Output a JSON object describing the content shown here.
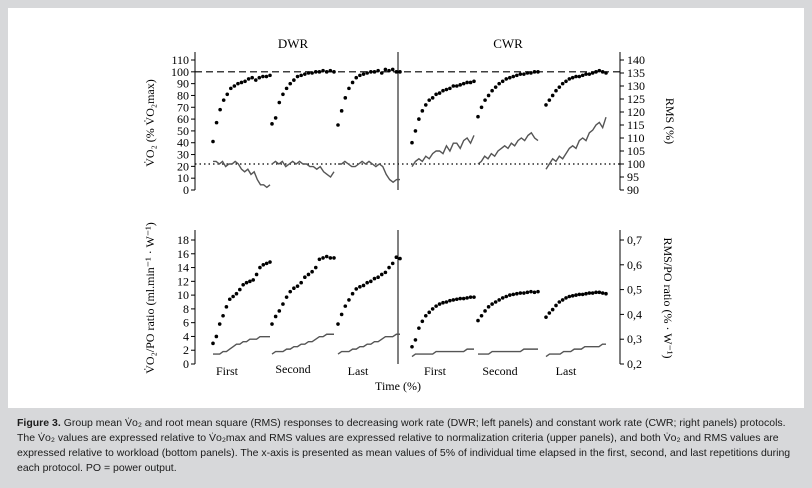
{
  "colors": {
    "background": "#d7d8da",
    "panel": "#ffffff",
    "dots": "#000000",
    "rms_line": "#555555",
    "axis": "#000000"
  },
  "panel_titles": [
    "DWR",
    "CWR"
  ],
  "x_axis": {
    "title": "Time (%)",
    "groups": [
      "First",
      "Second",
      "Last",
      "First",
      "Second",
      "Last"
    ]
  },
  "caption": {
    "label": "Figure 3.",
    "text": "Group mean V̇o₂ and root mean square (RMS) responses to decreasing work rate (DWR; left panels) and constant work rate (CWR; right panels) protocols. The V̇o₂ values are expressed relative to V̇o₂max and RMS values are expressed relative to normalization criteria (upper panels), and both V̇o₂ and RMS values are expressed relative to workload (bottom panels). The x-axis is presented as mean values of 5% of individual time elapsed in the first, second, and last repetitions during each protocol. PO = power output."
  },
  "chart_data": [
    {
      "type": "scatter",
      "position": "upper",
      "left_axis": {
        "label": "V̇O₂ (% V̇O₂max)",
        "ylim": [
          0,
          110
        ],
        "ticks": [
          "0",
          "10",
          "20",
          "30",
          "40",
          "50",
          "60",
          "70",
          "80",
          "90",
          "100",
          "110"
        ]
      },
      "right_axis": {
        "label": "RMS (%)",
        "ylim": [
          90,
          140
        ],
        "ticks": [
          "90",
          "95",
          "100",
          "105",
          "110",
          "115",
          "120",
          "125",
          "130",
          "135",
          "140"
        ]
      },
      "reference_lines": [
        {
          "style": "dashed",
          "left_axis_value": 100
        },
        {
          "style": "dotted",
          "left_axis_value": 22
        }
      ],
      "series": [
        {
          "protocol": "DWR",
          "repetition": "First",
          "vo2": [
            41,
            57,
            68,
            76,
            81,
            86,
            88,
            90,
            91,
            92,
            94,
            95,
            93,
            95,
            96,
            96,
            97
          ],
          "rms": [
            101,
            101,
            100,
            101,
            99,
            100,
            100,
            101,
            100,
            98,
            97,
            98,
            96,
            97,
            94,
            92,
            92,
            91,
            92
          ]
        },
        {
          "protocol": "DWR",
          "repetition": "Second",
          "vo2": [
            56,
            61,
            74,
            81,
            86,
            90,
            93,
            96,
            97,
            98,
            99,
            99,
            100,
            100,
            101,
            100,
            101,
            100
          ],
          "rms": [
            100,
            101,
            100,
            101,
            99,
            100,
            101,
            100,
            101,
            100,
            100,
            99,
            99,
            98,
            99,
            97,
            96,
            95,
            97
          ]
        },
        {
          "protocol": "DWR",
          "repetition": "Last",
          "vo2": [
            55,
            67,
            78,
            86,
            91,
            95,
            97,
            98,
            99,
            100,
            100,
            101,
            99,
            102,
            101,
            102,
            100,
            100
          ],
          "rms": [
            100,
            100,
            101,
            100,
            99,
            99,
            100,
            101,
            100,
            101,
            100,
            99,
            100,
            99,
            96,
            94,
            93,
            94,
            94
          ]
        },
        {
          "protocol": "CWR",
          "repetition": "First",
          "vo2": [
            40,
            50,
            60,
            67,
            72,
            76,
            78,
            81,
            82,
            84,
            85,
            86,
            88,
            88,
            89,
            90,
            91,
            91,
            92
          ],
          "rms": [
            99,
            101,
            102,
            101,
            103,
            102,
            104,
            105,
            105,
            104,
            107,
            105,
            108,
            108,
            106,
            109,
            110,
            108,
            111
          ]
        },
        {
          "protocol": "CWR",
          "repetition": "Second",
          "vo2": [
            62,
            70,
            76,
            80,
            84,
            87,
            90,
            92,
            94,
            95,
            96,
            97,
            98,
            98,
            99,
            99,
            100,
            100
          ],
          "rms": [
            100,
            101,
            103,
            102,
            104,
            103,
            105,
            106,
            107,
            106,
            108,
            107,
            109,
            110,
            109,
            111,
            112,
            110,
            109
          ]
        },
        {
          "protocol": "CWR",
          "repetition": "Last",
          "vo2": [
            72,
            76,
            80,
            84,
            87,
            90,
            92,
            94,
            95,
            96,
            96,
            97,
            98,
            98,
            99,
            100,
            101,
            100,
            99
          ],
          "rms": [
            98,
            100,
            102,
            101,
            103,
            102,
            104,
            106,
            107,
            106,
            109,
            110,
            109,
            112,
            113,
            115,
            116,
            114,
            118
          ]
        }
      ]
    },
    {
      "type": "scatter",
      "position": "lower",
      "left_axis": {
        "label": "V̇O₂/PO ratio (ml.min⁻¹ · W⁻¹)",
        "ylim": [
          0,
          18
        ],
        "ticks": [
          "0",
          "2",
          "4",
          "6",
          "8",
          "10",
          "12",
          "14",
          "16",
          "18"
        ]
      },
      "right_axis": {
        "label": "RMS/PO ratio (% · W⁻¹)",
        "ylim": [
          0.2,
          0.7
        ],
        "ticks": [
          "0,2",
          "0,3",
          "0,4",
          "0,5",
          "0,6",
          "0,7"
        ]
      },
      "series": [
        {
          "protocol": "DWR",
          "repetition": "First",
          "vo2_po": [
            3.0,
            4.0,
            5.8,
            7.0,
            8.3,
            9.4,
            9.8,
            10.2,
            10.8,
            11.5,
            11.8,
            12.0,
            12.2,
            13.0,
            14.0,
            14.4,
            14.6,
            14.8
          ],
          "rms_po": [
            0.24,
            0.24,
            0.24,
            0.25,
            0.25,
            0.26,
            0.27,
            0.28,
            0.28,
            0.29,
            0.29,
            0.3,
            0.3,
            0.3,
            0.31,
            0.31,
            0.31,
            0.31
          ]
        },
        {
          "protocol": "DWR",
          "repetition": "Second",
          "vo2_po": [
            5.8,
            6.9,
            7.7,
            8.7,
            9.7,
            10.5,
            11.0,
            11.3,
            11.8,
            12.6,
            13.0,
            13.4,
            14.0,
            15.2,
            15.4,
            15.6,
            15.4,
            15.4
          ],
          "rms_po": [
            0.24,
            0.25,
            0.25,
            0.25,
            0.26,
            0.26,
            0.27,
            0.27,
            0.28,
            0.28,
            0.29,
            0.29,
            0.3,
            0.31,
            0.31,
            0.32,
            0.32,
            0.32
          ]
        },
        {
          "protocol": "DWR",
          "repetition": "Last",
          "vo2_po": [
            5.8,
            7.2,
            8.4,
            9.3,
            10.2,
            10.9,
            11.2,
            11.4,
            11.8,
            12.0,
            12.4,
            12.6,
            13.0,
            13.3,
            14.0,
            14.6,
            15.5,
            15.3
          ],
          "rms_po": [
            0.24,
            0.25,
            0.25,
            0.25,
            0.26,
            0.26,
            0.27,
            0.27,
            0.28,
            0.28,
            0.29,
            0.29,
            0.3,
            0.31,
            0.31,
            0.31,
            0.32,
            0.32
          ]
        },
        {
          "protocol": "CWR",
          "repetition": "First",
          "vo2_po": [
            2.5,
            3.5,
            5.2,
            6.2,
            7.0,
            7.5,
            8.0,
            8.4,
            8.7,
            8.9,
            9.0,
            9.2,
            9.3,
            9.4,
            9.5,
            9.5,
            9.6,
            9.7,
            9.7
          ],
          "rms_po": [
            0.23,
            0.24,
            0.24,
            0.24,
            0.24,
            0.24,
            0.24,
            0.25,
            0.25,
            0.25,
            0.25,
            0.25,
            0.25,
            0.25,
            0.25,
            0.25,
            0.26,
            0.26,
            0.26
          ]
        },
        {
          "protocol": "CWR",
          "repetition": "Second",
          "vo2_po": [
            6.3,
            7.0,
            7.7,
            8.3,
            8.7,
            9.0,
            9.3,
            9.6,
            9.8,
            10.0,
            10.1,
            10.2,
            10.3,
            10.3,
            10.4,
            10.5,
            10.4,
            10.5
          ],
          "rms_po": [
            0.24,
            0.24,
            0.24,
            0.24,
            0.25,
            0.25,
            0.25,
            0.25,
            0.25,
            0.25,
            0.25,
            0.25,
            0.25,
            0.26,
            0.26,
            0.26,
            0.26,
            0.26
          ]
        },
        {
          "protocol": "CWR",
          "repetition": "Last",
          "vo2_po": [
            6.8,
            7.4,
            7.9,
            8.5,
            9.0,
            9.3,
            9.6,
            9.8,
            9.9,
            10.0,
            10.1,
            10.1,
            10.2,
            10.3,
            10.3,
            10.4,
            10.4,
            10.3,
            10.2
          ],
          "rms_po": [
            0.23,
            0.24,
            0.24,
            0.24,
            0.24,
            0.25,
            0.25,
            0.25,
            0.26,
            0.26,
            0.26,
            0.27,
            0.27,
            0.27,
            0.27,
            0.27,
            0.28,
            0.28
          ]
        }
      ]
    }
  ]
}
